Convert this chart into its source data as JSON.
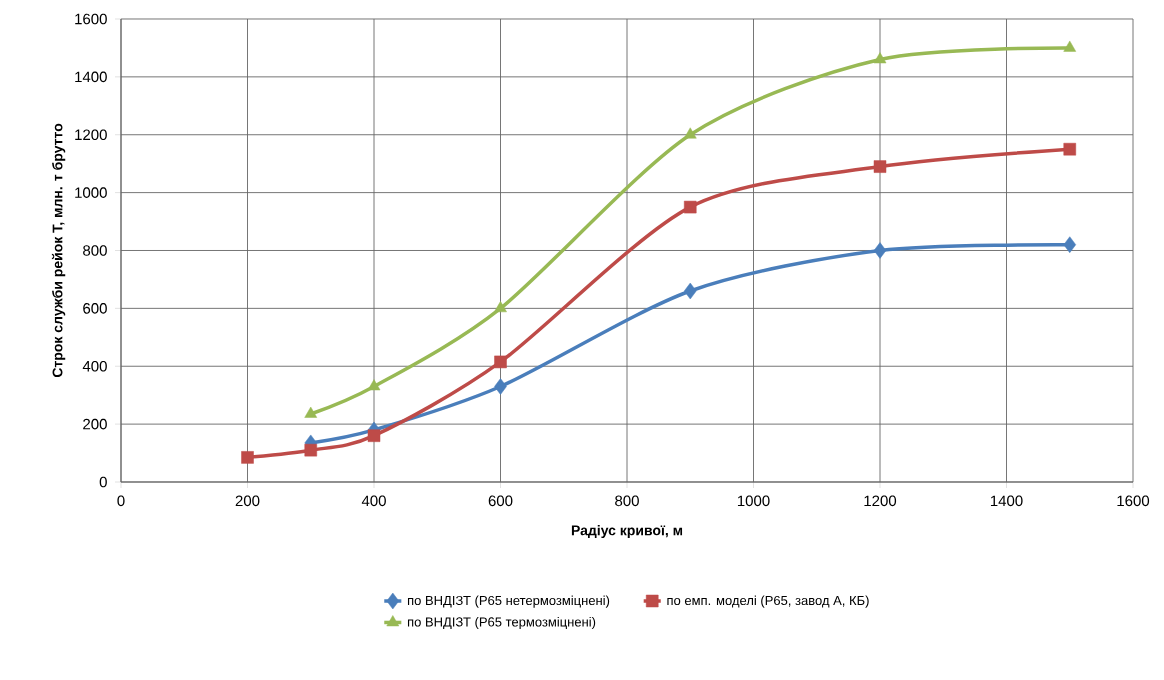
{
  "chart_data": {
    "type": "line",
    "xlabel": "Радіус кривої, м",
    "ylabel": "Строк служби рейок Т, млн. т брутто",
    "xlim": [
      0,
      1600
    ],
    "xticks": [
      0,
      200,
      400,
      600,
      800,
      1000,
      1200,
      1400,
      1600
    ],
    "ylim": [
      0,
      1600
    ],
    "yticks": [
      0,
      200,
      400,
      600,
      800,
      1000,
      1200,
      1400,
      1600
    ],
    "grid": true,
    "legend": "bottom",
    "line_style": "solid",
    "series": [
      {
        "name": "по ВНДІЗТ (Р65 нетермозміцнені)",
        "color": "#4a7ebb",
        "marker": "diamond",
        "x": [
          300,
          400,
          600,
          900,
          1200,
          1500
        ],
        "values": [
          135,
          180,
          330,
          660,
          800,
          820
        ]
      },
      {
        "name": "по емп. моделі (Р65, завод А, КБ)",
        "color": "#be4b48",
        "marker": "square",
        "x": [
          200,
          300,
          400,
          600,
          900,
          1200,
          1500
        ],
        "values": [
          85,
          110,
          160,
          415,
          950,
          1090,
          1150
        ]
      },
      {
        "name": "по ВНДІЗТ (Р65 термозміцнені)",
        "color": "#98b954",
        "marker": "triangle",
        "x": [
          300,
          400,
          600,
          900,
          1200,
          1500
        ],
        "values": [
          235,
          330,
          600,
          1200,
          1460,
          1500
        ]
      }
    ]
  }
}
